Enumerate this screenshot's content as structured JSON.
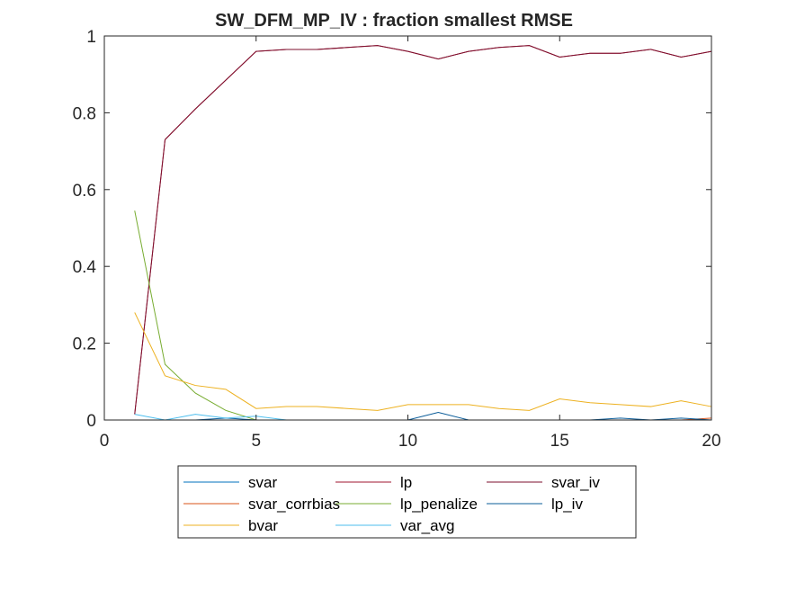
{
  "chart_data": {
    "type": "line",
    "title": "SW_DFM_MP_IV : fraction smallest RMSE",
    "xlabel": "",
    "ylabel": "",
    "xlim": [
      0,
      20
    ],
    "ylim": [
      0,
      1
    ],
    "xticks": [
      0,
      5,
      10,
      15,
      20
    ],
    "yticks": [
      0,
      0.2,
      0.4,
      0.6,
      0.8,
      1
    ],
    "xtick_labels": [
      "0",
      "5",
      "10",
      "15",
      "20"
    ],
    "ytick_labels": [
      "0",
      "0.2",
      "0.4",
      "0.6",
      "0.8",
      "1"
    ],
    "grid": false,
    "legend": {
      "placement": "bottom-outside",
      "columns": 3
    },
    "x": [
      1,
      2,
      3,
      4,
      5,
      6,
      7,
      8,
      9,
      10,
      11,
      12,
      13,
      14,
      15,
      16,
      17,
      18,
      19,
      20
    ],
    "series": [
      {
        "name": "svar",
        "color": "#0072BD",
        "values": [
          0,
          0,
          0,
          0,
          0,
          0,
          0,
          0,
          0,
          0,
          0,
          0,
          0,
          0,
          0,
          0,
          0,
          0,
          0,
          0
        ]
      },
      {
        "name": "lp",
        "color": "#A2142F",
        "values": [
          0.015,
          0.73,
          0.81,
          0.885,
          0.96,
          0.965,
          0.965,
          0.97,
          0.975,
          0.96,
          0.94,
          0.96,
          0.97,
          0.975,
          0.945,
          0.955,
          0.955,
          0.965,
          0.945,
          0.96
        ]
      },
      {
        "name": "svar_iv",
        "color": "#7E0F2E",
        "values": [
          0.015,
          0.73,
          0.81,
          0.885,
          0.96,
          0.965,
          0.965,
          0.97,
          0.975,
          0.96,
          0.94,
          0.96,
          0.97,
          0.975,
          0.945,
          0.955,
          0.955,
          0.965,
          0.945,
          0.96
        ]
      },
      {
        "name": "svar_corrbias",
        "color": "#D95319",
        "values": [
          0,
          0,
          0,
          0,
          0,
          0,
          0,
          0,
          0,
          0,
          0,
          0,
          0,
          0,
          0,
          0,
          0,
          0,
          0,
          0.005
        ]
      },
      {
        "name": "lp_penalize",
        "color": "#77AC30",
        "values": [
          0.545,
          0.145,
          0.07,
          0.025,
          0,
          0,
          0,
          0,
          0,
          0,
          0,
          0,
          0,
          0,
          0,
          0,
          0,
          0,
          0,
          0
        ]
      },
      {
        "name": "lp_iv",
        "color": "#0A5C99",
        "values": [
          0,
          0,
          0,
          0.005,
          0,
          0,
          0,
          0,
          0,
          0,
          0.02,
          0,
          0,
          0,
          0,
          0,
          0.005,
          0,
          0.005,
          0
        ]
      },
      {
        "name": "bvar",
        "color": "#EDB120",
        "values": [
          0.28,
          0.115,
          0.09,
          0.08,
          0.03,
          0.035,
          0.035,
          0.03,
          0.025,
          0.04,
          0.04,
          0.04,
          0.03,
          0.025,
          0.055,
          0.045,
          0.04,
          0.035,
          0.05,
          0.035
        ]
      },
      {
        "name": "var_avg",
        "color": "#4DBEEE",
        "values": [
          0.015,
          0,
          0.015,
          0.005,
          0.01,
          0,
          0,
          0,
          0,
          0,
          0,
          0,
          0,
          0,
          0,
          0,
          0,
          0,
          0,
          0
        ]
      }
    ]
  }
}
